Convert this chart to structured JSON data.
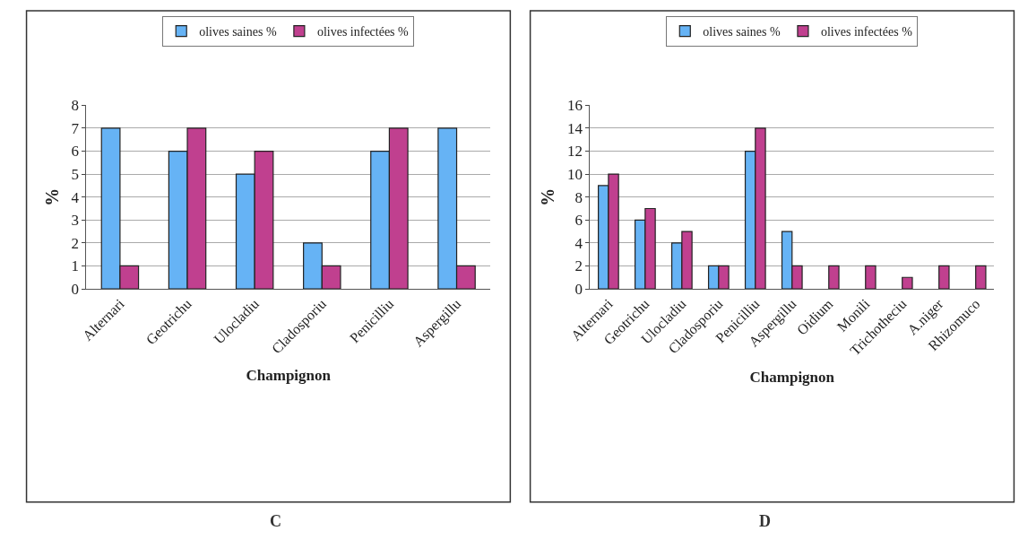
{
  "chart_data": [
    {
      "type": "bar",
      "xlabel": "Champignon",
      "ylabel": "%",
      "categories": [
        "Alternari",
        "Geotrichu",
        "Ulocladiu",
        "Cladosporiu",
        "Penicilliu",
        "Aspergillu"
      ],
      "series": [
        {
          "name": "olives saines %",
          "color": "#66b3f5",
          "values": [
            7,
            6,
            5,
            2,
            6,
            7
          ]
        },
        {
          "name": "olives infectées %",
          "color": "#c0408f",
          "values": [
            1,
            7,
            6,
            1,
            7,
            1
          ]
        }
      ],
      "ylim": [
        0,
        8
      ],
      "yticks": [
        0,
        1,
        2,
        3,
        4,
        5,
        6,
        7,
        8
      ],
      "grid": "y",
      "legend": "top",
      "annotations": [
        "C"
      ]
    },
    {
      "type": "bar",
      "xlabel": "Champignon",
      "ylabel": "%",
      "categories": [
        "Alternari",
        "Geotrichu",
        "Ulocladiu",
        "Cladosporiu",
        "Penicilliu",
        "Aspergillu",
        "Oidium",
        "Monili",
        "Trichotheciu",
        "A.niger",
        "Rhizomuco"
      ],
      "series": [
        {
          "name": "olives saines %",
          "color": "#66b3f5",
          "values": [
            9,
            6,
            4,
            2,
            12,
            5,
            null,
            null,
            null,
            null,
            null
          ]
        },
        {
          "name": "olives infectées %",
          "color": "#c0408f",
          "values": [
            10,
            7,
            5,
            2,
            14,
            2,
            2,
            2,
            1,
            2,
            2
          ]
        }
      ],
      "ylim": [
        0,
        16
      ],
      "yticks": [
        0,
        2,
        4,
        6,
        8,
        10,
        12,
        14,
        16
      ],
      "grid": "y",
      "legend": "top",
      "annotations": [
        "D"
      ]
    }
  ]
}
